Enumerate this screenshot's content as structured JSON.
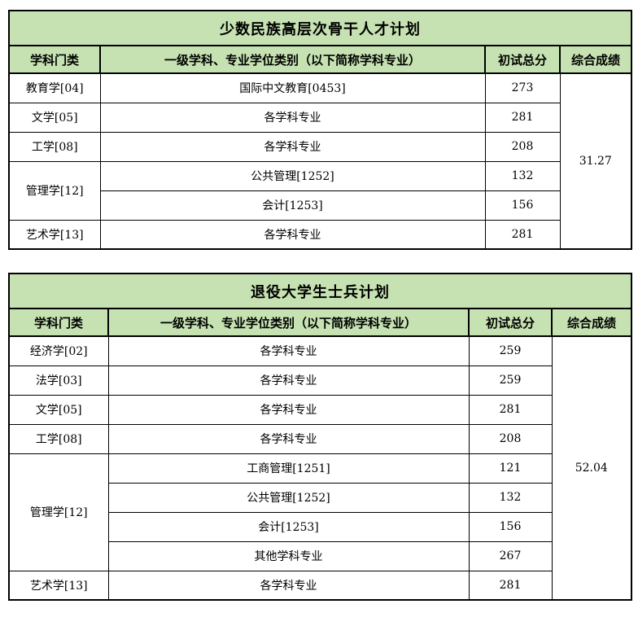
{
  "style": {
    "header_bg": "#c6e2b2",
    "border_color": "#000000",
    "text_color": "#000000",
    "page_bg": "#ffffff"
  },
  "tables": [
    {
      "title": "少数民族高层次骨干人才计划",
      "headers": [
        "学科门类",
        "一级学科、专业学位类别（以下简称学科专业）",
        "初试总分",
        "综合成绩"
      ],
      "composite_score": "31.27",
      "groups": [
        {
          "category": "教育学[04]",
          "majors": [
            {
              "name": "国际中文教育[0453]",
              "score": "273"
            }
          ]
        },
        {
          "category": "文学[05]",
          "majors": [
            {
              "name": "各学科专业",
              "score": "281"
            }
          ]
        },
        {
          "category": "工学[08]",
          "majors": [
            {
              "name": "各学科专业",
              "score": "208"
            }
          ]
        },
        {
          "category": "管理学[12]",
          "majors": [
            {
              "name": "公共管理[1252]",
              "score": "132"
            },
            {
              "name": "会计[1253]",
              "score": "156"
            }
          ]
        },
        {
          "category": "艺术学[13]",
          "majors": [
            {
              "name": "各学科专业",
              "score": "281"
            }
          ]
        }
      ]
    },
    {
      "title": "退役大学生士兵计划",
      "headers": [
        "学科门类",
        "一级学科、专业学位类别（以下简称学科专业）",
        "初试总分",
        "综合成绩"
      ],
      "composite_score": "52.04",
      "groups": [
        {
          "category": "经济学[02]",
          "majors": [
            {
              "name": "各学科专业",
              "score": "259"
            }
          ]
        },
        {
          "category": "法学[03]",
          "majors": [
            {
              "name": "各学科专业",
              "score": "259"
            }
          ]
        },
        {
          "category": "文学[05]",
          "majors": [
            {
              "name": "各学科专业",
              "score": "281"
            }
          ]
        },
        {
          "category": "工学[08]",
          "majors": [
            {
              "name": "各学科专业",
              "score": "208"
            }
          ]
        },
        {
          "category": "管理学[12]",
          "majors": [
            {
              "name": "工商管理[1251]",
              "score": "121"
            },
            {
              "name": "公共管理[1252]",
              "score": "132"
            },
            {
              "name": "会计[1253]",
              "score": "156"
            },
            {
              "name": "其他学科专业",
              "score": "267"
            }
          ]
        },
        {
          "category": "艺术学[13]",
          "majors": [
            {
              "name": "各学科专业",
              "score": "281"
            }
          ]
        }
      ]
    }
  ]
}
